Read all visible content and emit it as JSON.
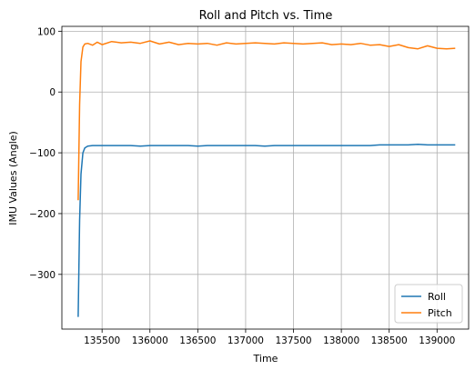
{
  "chart_data": {
    "type": "line",
    "title": "Roll and Pitch vs. Time",
    "xlabel": "Time",
    "ylabel": "IMU Values (Angle)",
    "xlim": [
      135080,
      139330
    ],
    "ylim": [
      -390,
      108
    ],
    "xticks": [
      135500,
      136000,
      136500,
      137000,
      137500,
      138000,
      138500,
      139000
    ],
    "yticks": [
      -300,
      -200,
      -100,
      0,
      100
    ],
    "xtick_labels": [
      "135500",
      "136000",
      "136500",
      "137000",
      "137500",
      "138000",
      "138500",
      "139000"
    ],
    "ytick_labels": [
      "−300",
      "−200",
      "−100",
      "0",
      "100"
    ],
    "grid": true,
    "legend_position": "bottom-right",
    "series": [
      {
        "name": "Roll",
        "color": "#1f77b4",
        "x": [
          135250,
          135265,
          135280,
          135300,
          135320,
          135350,
          135400,
          135450,
          135500,
          135600,
          135700,
          135800,
          135900,
          136000,
          136100,
          136200,
          136300,
          136400,
          136500,
          136600,
          136700,
          136800,
          136900,
          137000,
          137100,
          137200,
          137300,
          137400,
          137500,
          137600,
          137700,
          137800,
          137900,
          138000,
          138100,
          138200,
          138300,
          138400,
          138500,
          138600,
          138700,
          138800,
          138900,
          139000,
          139100,
          139190
        ],
        "y": [
          -370,
          -210,
          -135,
          -100,
          -92,
          -89,
          -88,
          -88,
          -88,
          -88,
          -88,
          -88,
          -89,
          -88,
          -88,
          -88,
          -88,
          -88,
          -89,
          -88,
          -88,
          -88,
          -88,
          -88,
          -88,
          -89,
          -88,
          -88,
          -88,
          -88,
          -88,
          -88,
          -88,
          -88,
          -88,
          -88,
          -88,
          -87,
          -87,
          -87,
          -87,
          -86,
          -87,
          -87,
          -87,
          -87
        ]
      },
      {
        "name": "Pitch",
        "color": "#ff7f0e",
        "x": [
          135250,
          135265,
          135280,
          135300,
          135320,
          135350,
          135400,
          135450,
          135500,
          135600,
          135700,
          135800,
          135900,
          136000,
          136100,
          136200,
          136300,
          136400,
          136500,
          136600,
          136700,
          136800,
          136900,
          137000,
          137100,
          137200,
          137300,
          137400,
          137500,
          137600,
          137700,
          137800,
          137900,
          138000,
          138100,
          138200,
          138300,
          138400,
          138500,
          138600,
          138700,
          138800,
          138900,
          139000,
          139100,
          139190
        ],
        "y": [
          -178,
          -20,
          50,
          74,
          79,
          80,
          77,
          82,
          78,
          83,
          81,
          82,
          80,
          84,
          79,
          82,
          78,
          80,
          79,
          80,
          77,
          81,
          79,
          80,
          81,
          80,
          79,
          81,
          80,
          79,
          80,
          81,
          78,
          79,
          78,
          80,
          77,
          78,
          75,
          78,
          73,
          71,
          76,
          72,
          71,
          72
        ]
      }
    ]
  }
}
